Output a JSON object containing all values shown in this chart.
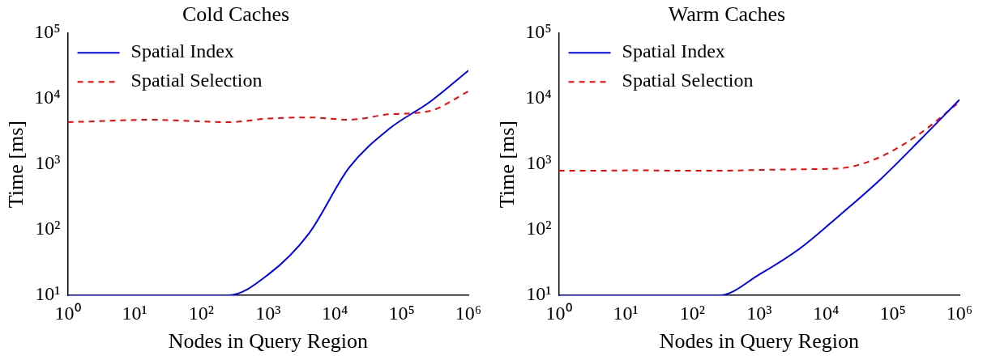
{
  "chart_data": [
    {
      "type": "line",
      "title": "Cold Caches",
      "xlabel": "Nodes in Query Region",
      "ylabel": "Time [ms]",
      "log": "xy",
      "xlim": [
        1,
        1000000
      ],
      "ylim": [
        10,
        100000
      ],
      "xticks": [
        {
          "value": 1,
          "label": "10⁰"
        },
        {
          "value": 10,
          "label": "10¹"
        },
        {
          "value": 100,
          "label": "10²"
        },
        {
          "value": 1000,
          "label": "10³"
        },
        {
          "value": 10000,
          "label": "10⁴"
        },
        {
          "value": 100000,
          "label": "10⁵"
        },
        {
          "value": 1000000,
          "label": "10⁶"
        }
      ],
      "yticks": [
        {
          "value": 10,
          "label": "10¹"
        },
        {
          "value": 100,
          "label": "10²"
        },
        {
          "value": 1000,
          "label": "10³"
        },
        {
          "value": 10000,
          "label": "10⁴"
        },
        {
          "value": 100000,
          "label": "10⁵"
        }
      ],
      "grid": false,
      "legend": "top left",
      "marker": "none",
      "x": [
        1,
        4,
        16,
        64,
        256,
        1024,
        4096,
        16384,
        65536,
        262144,
        1000000
      ],
      "series": [
        {
          "name": "Spatial Index",
          "color": "#0000ff",
          "line_style": "solid",
          "values": [
            10,
            10,
            10,
            10,
            10,
            21,
            88,
            890,
            3500,
            8900,
            27000
          ]
        },
        {
          "name": "Spatial Selection",
          "color": "#ff0000",
          "line_style": "dashed",
          "values": [
            4400,
            4600,
            4800,
            4600,
            4400,
            5000,
            5200,
            4800,
            5800,
            6500,
            13000
          ]
        }
      ]
    },
    {
      "type": "line",
      "title": "Warm Caches",
      "xlabel": "Nodes in Query Region",
      "ylabel": "Time [ms]",
      "log": "xy",
      "xlim": [
        1,
        1000000
      ],
      "ylim": [
        10,
        100000
      ],
      "xticks": [
        {
          "value": 1,
          "label": "10⁰"
        },
        {
          "value": 10,
          "label": "10¹"
        },
        {
          "value": 100,
          "label": "10²"
        },
        {
          "value": 1000,
          "label": "10³"
        },
        {
          "value": 10000,
          "label": "10⁴"
        },
        {
          "value": 100000,
          "label": "10⁵"
        },
        {
          "value": 1000000,
          "label": "10⁶"
        }
      ],
      "yticks": [
        {
          "value": 10,
          "label": "10¹"
        },
        {
          "value": 100,
          "label": "10²"
        },
        {
          "value": 1000,
          "label": "10³"
        },
        {
          "value": 10000,
          "label": "10⁴"
        },
        {
          "value": 100000,
          "label": "10⁵"
        }
      ],
      "grid": false,
      "legend": "top left",
      "marker": "none",
      "x": [
        1,
        4,
        16,
        64,
        256,
        1024,
        4096,
        16384,
        65536,
        262144,
        1000000
      ],
      "series": [
        {
          "name": "Spatial Index",
          "color": "#0000ff",
          "line_style": "solid",
          "values": [
            10,
            10,
            10,
            10,
            10,
            21,
            52,
            170,
            590,
            2400,
            9700
          ]
        },
        {
          "name": "Spatial Selection",
          "color": "#ff0000",
          "line_style": "dashed",
          "values": [
            800,
            800,
            810,
            800,
            800,
            820,
            840,
            870,
            1300,
            3000,
            9000
          ]
        }
      ]
    }
  ]
}
